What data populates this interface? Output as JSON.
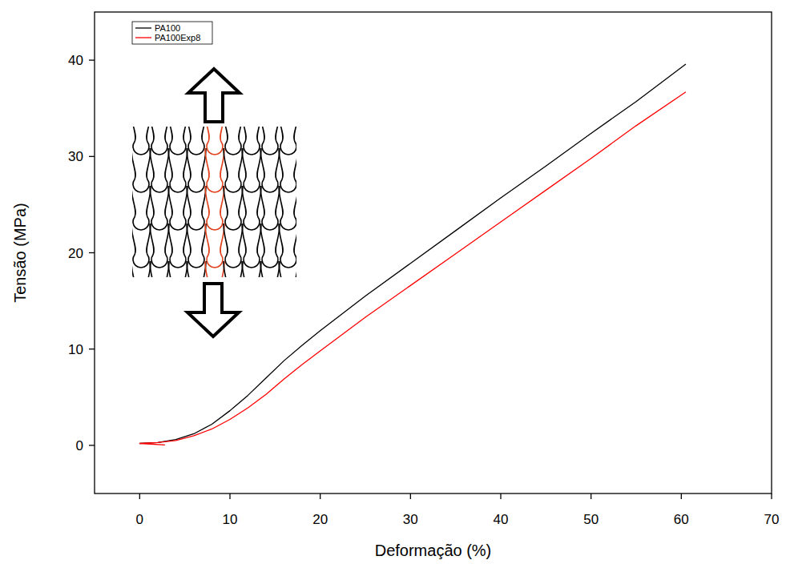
{
  "chart_data": {
    "type": "line",
    "x_label": "Deformação (%)",
    "y_label": "Tensão (MPa)",
    "xlim": [
      -5,
      70
    ],
    "ylim": [
      -5,
      45
    ],
    "xticks": [
      0,
      10,
      20,
      30,
      40,
      50,
      60,
      70
    ],
    "yticks": [
      0,
      10,
      20,
      30,
      40
    ],
    "grid": false,
    "legend": "top-left",
    "series": [
      {
        "name": "PA100",
        "color": "#000000",
        "x": [
          0,
          2,
          4,
          6,
          8,
          10,
          12,
          14,
          16,
          18,
          20,
          25,
          30,
          35,
          40,
          45,
          50,
          55,
          60.5
        ],
        "values": [
          0.2,
          0.3,
          0.6,
          1.2,
          2.2,
          3.6,
          5.2,
          7.0,
          8.8,
          10.4,
          11.9,
          15.5,
          18.9,
          22.3,
          25.7,
          29.0,
          32.4,
          35.7,
          39.6
        ]
      },
      {
        "name": "PA100Exp8",
        "color": "#ff0000",
        "x": [
          2.8,
          0,
          2,
          4,
          6,
          8,
          10,
          12,
          14,
          16,
          18,
          20,
          25,
          30,
          35,
          40,
          45,
          50,
          55,
          60.5
        ],
        "values": [
          0.05,
          0.2,
          0.3,
          0.5,
          1.0,
          1.7,
          2.7,
          3.9,
          5.3,
          6.9,
          8.4,
          9.8,
          13.3,
          16.6,
          19.9,
          23.2,
          26.5,
          29.8,
          33.2,
          36.7
        ]
      }
    ]
  }
}
